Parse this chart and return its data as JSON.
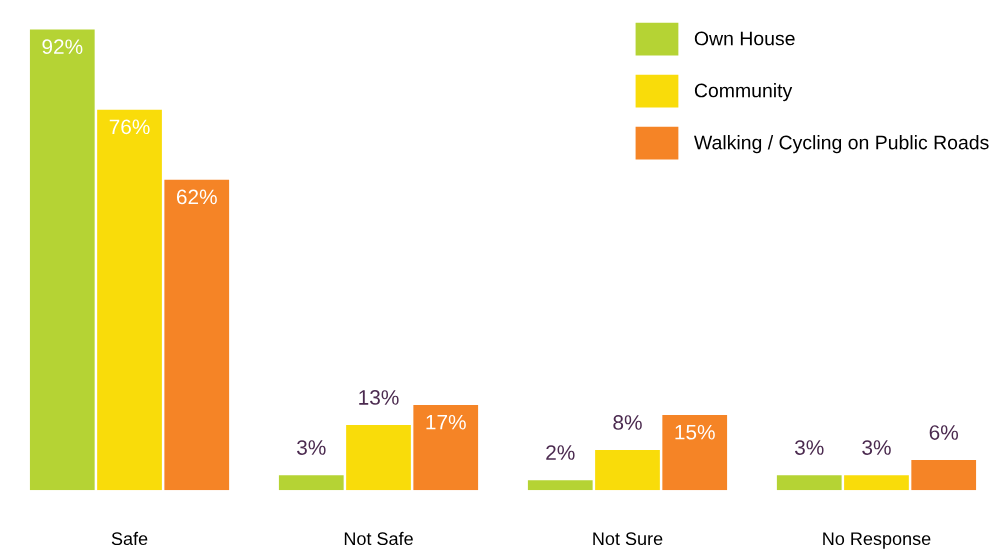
{
  "chart_data": {
    "type": "bar",
    "categories": [
      "Safe",
      "Not Safe",
      "Not Sure",
      "No Response"
    ],
    "series": [
      {
        "name": "Own House",
        "color": "#b5d334",
        "values": [
          92,
          3,
          2,
          3
        ],
        "value_labels": [
          "92%",
          "3%",
          "2%",
          "3%"
        ]
      },
      {
        "name": "Community",
        "color": "#f9dc0a",
        "values": [
          76,
          13,
          8,
          3
        ],
        "value_labels": [
          "76%",
          "13%",
          "8%",
          "3%"
        ]
      },
      {
        "name": "Walking / Cycling on Public Roads",
        "color": "#f58426",
        "values": [
          62,
          17,
          15,
          6
        ],
        "value_labels": [
          "62%",
          "17%",
          "15%",
          "6%"
        ]
      }
    ],
    "legend": "top right",
    "grid": false
  }
}
